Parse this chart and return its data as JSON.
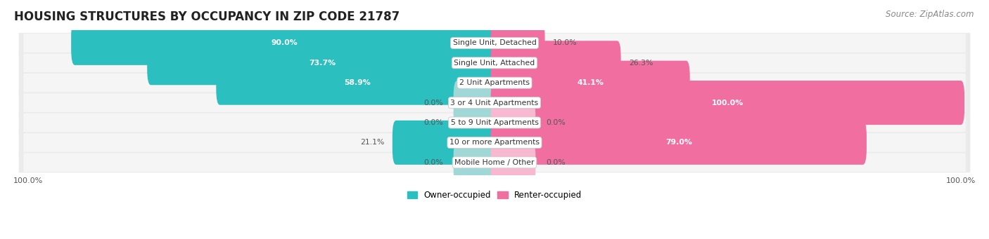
{
  "title": "HOUSING STRUCTURES BY OCCUPANCY IN ZIP CODE 21787",
  "source": "Source: ZipAtlas.com",
  "categories": [
    "Single Unit, Detached",
    "Single Unit, Attached",
    "2 Unit Apartments",
    "3 or 4 Unit Apartments",
    "5 to 9 Unit Apartments",
    "10 or more Apartments",
    "Mobile Home / Other"
  ],
  "owner_values": [
    90.0,
    73.7,
    58.9,
    0.0,
    0.0,
    21.1,
    0.0
  ],
  "renter_values": [
    10.0,
    26.3,
    41.1,
    100.0,
    0.0,
    79.0,
    0.0
  ],
  "owner_color": "#2cbfbf",
  "renter_color": "#f06ea0",
  "owner_color_pale": "#a0d8d8",
  "renter_color_pale": "#f8b8d0",
  "row_bg_color": "#ebebeb",
  "row_bg_inner": "#f5f5f5",
  "title_fontsize": 12,
  "source_fontsize": 8.5,
  "bar_height": 0.62,
  "figsize": [
    14.06,
    3.41
  ],
  "dpi": 100,
  "xlim_left": -103,
  "xlim_right": 103
}
